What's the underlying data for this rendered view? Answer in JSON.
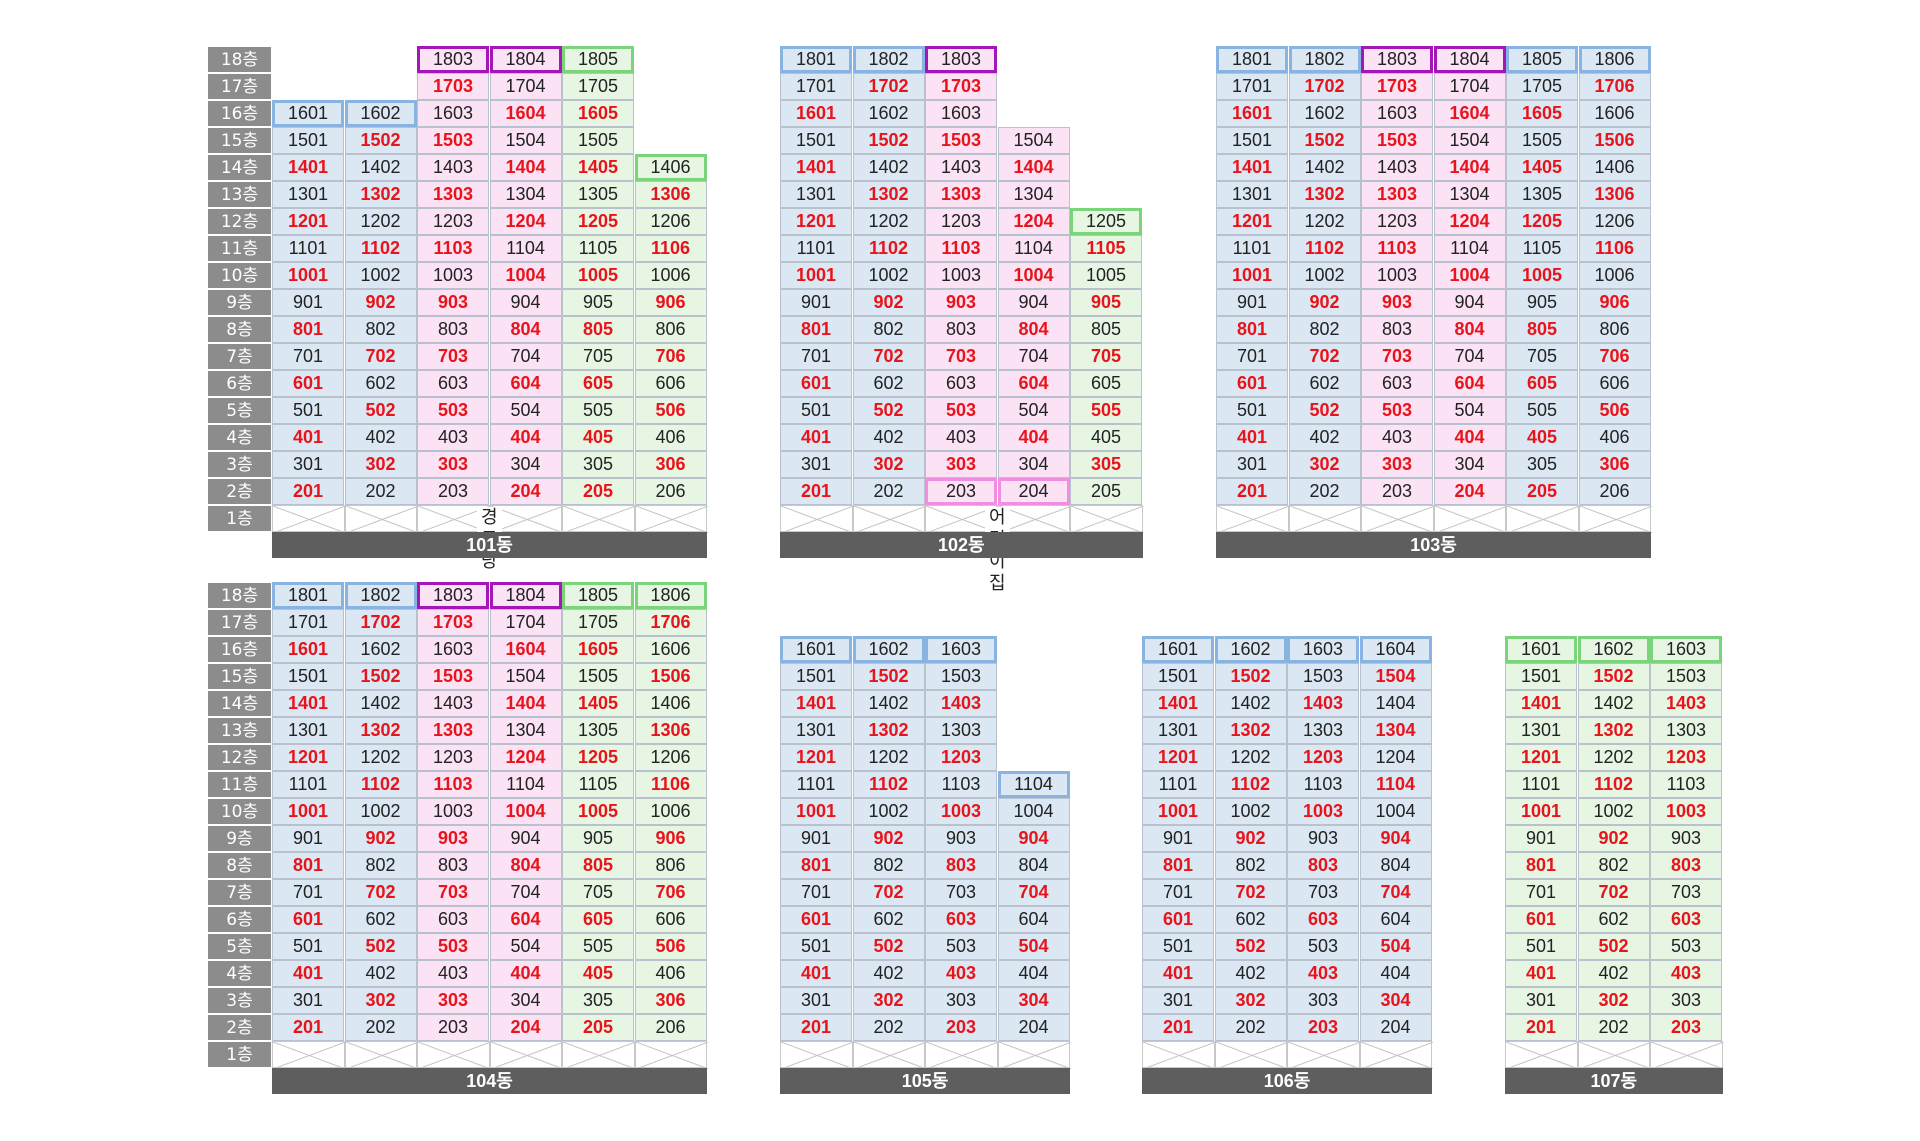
{
  "floor_suffix": "층",
  "buildings": [
    {
      "name": "101동",
      "ground_label": "경로당",
      "columns": [
        {
          "unit": "01",
          "color": "blue",
          "top": 16,
          "top_highlight": "blue"
        },
        {
          "unit": "02",
          "color": "blue",
          "top": 16,
          "top_highlight": "blue"
        },
        {
          "unit": "03",
          "color": "pink",
          "top": 18,
          "top_highlight": "purple"
        },
        {
          "unit": "04",
          "color": "pink",
          "top": 18,
          "top_highlight": "purple"
        },
        {
          "unit": "05",
          "color": "green",
          "top": 18,
          "top_highlight": "green"
        },
        {
          "unit": "06",
          "color": "green",
          "top": 14,
          "top_highlight": "green"
        }
      ],
      "red": [
        "201",
        "204",
        "205",
        "302",
        "303",
        "306",
        "401",
        "404",
        "405",
        "502",
        "503",
        "506",
        "601",
        "604",
        "605",
        "702",
        "703",
        "706",
        "801",
        "804",
        "805",
        "902",
        "903",
        "906",
        "1001",
        "1004",
        "1005",
        "1102",
        "1103",
        "1106",
        "1201",
        "1204",
        "1205",
        "1302",
        "1303",
        "1306",
        "1401",
        "1404",
        "1405",
        "1502",
        "1503",
        "1604",
        "1605",
        "1703"
      ]
    },
    {
      "name": "102동",
      "ground_label": "어린이집",
      "columns": [
        {
          "unit": "01",
          "color": "blue",
          "top": 18,
          "top_highlight": "blue"
        },
        {
          "unit": "02",
          "color": "blue",
          "top": 18,
          "top_highlight": "blue"
        },
        {
          "unit": "03",
          "color": "pink",
          "top": 18,
          "top_highlight": "purple",
          "bottom": 2,
          "bottom_highlight": "pink"
        },
        {
          "unit": "04",
          "color": "pink",
          "top": 15,
          "bottom": 2,
          "bottom_highlight": "pink"
        },
        {
          "unit": "05",
          "color": "green",
          "top": 12,
          "top_highlight": "green"
        }
      ],
      "red": [
        "201",
        "302",
        "303",
        "305",
        "401",
        "404",
        "502",
        "503",
        "505",
        "601",
        "604",
        "702",
        "703",
        "705",
        "801",
        "804",
        "902",
        "903",
        "905",
        "1001",
        "1004",
        "1102",
        "1103",
        "1105",
        "1201",
        "1204",
        "1302",
        "1303",
        "1401",
        "1404",
        "1502",
        "1503",
        "1601",
        "1702",
        "1703"
      ]
    },
    {
      "name": "103동",
      "ground_label": "",
      "columns": [
        {
          "unit": "01",
          "color": "blue",
          "top": 18,
          "top_highlight": "blue"
        },
        {
          "unit": "02",
          "color": "blue",
          "top": 18,
          "top_highlight": "blue"
        },
        {
          "unit": "03",
          "color": "pink",
          "top": 18,
          "top_highlight": "purple"
        },
        {
          "unit": "04",
          "color": "pink",
          "top": 18,
          "top_highlight": "purple"
        },
        {
          "unit": "05",
          "color": "blue",
          "top": 18,
          "top_highlight": "blue"
        },
        {
          "unit": "06",
          "color": "blue",
          "top": 18,
          "top_highlight": "blue"
        }
      ],
      "red": [
        "201",
        "204",
        "205",
        "302",
        "303",
        "306",
        "401",
        "404",
        "405",
        "502",
        "503",
        "506",
        "601",
        "604",
        "605",
        "702",
        "703",
        "706",
        "801",
        "804",
        "805",
        "902",
        "903",
        "906",
        "1001",
        "1004",
        "1005",
        "1102",
        "1103",
        "1106",
        "1201",
        "1204",
        "1205",
        "1302",
        "1303",
        "1306",
        "1401",
        "1404",
        "1405",
        "1502",
        "1503",
        "1506",
        "1601",
        "1604",
        "1605",
        "1702",
        "1703",
        "1706"
      ]
    },
    {
      "name": "104동",
      "ground_label": "",
      "columns": [
        {
          "unit": "01",
          "color": "blue",
          "top": 18,
          "top_highlight": "blue"
        },
        {
          "unit": "02",
          "color": "blue",
          "top": 18,
          "top_highlight": "blue"
        },
        {
          "unit": "03",
          "color": "pink",
          "top": 18,
          "top_highlight": "purple"
        },
        {
          "unit": "04",
          "color": "pink",
          "top": 18,
          "top_highlight": "purple"
        },
        {
          "unit": "05",
          "color": "green",
          "top": 18,
          "top_highlight": "green"
        },
        {
          "unit": "06",
          "color": "green",
          "top": 18,
          "top_highlight": "green"
        }
      ],
      "red": [
        "201",
        "204",
        "205",
        "302",
        "303",
        "306",
        "401",
        "404",
        "405",
        "502",
        "503",
        "506",
        "601",
        "604",
        "605",
        "702",
        "703",
        "706",
        "801",
        "804",
        "805",
        "902",
        "903",
        "906",
        "1001",
        "1004",
        "1005",
        "1102",
        "1103",
        "1106",
        "1201",
        "1204",
        "1205",
        "1302",
        "1303",
        "1306",
        "1401",
        "1404",
        "1405",
        "1502",
        "1503",
        "1506",
        "1601",
        "1604",
        "1605",
        "1702",
        "1703",
        "1706"
      ]
    },
    {
      "name": "105동",
      "ground_label": "",
      "columns": [
        {
          "unit": "01",
          "color": "blue",
          "top": 16,
          "top_highlight": "blue"
        },
        {
          "unit": "02",
          "color": "blue",
          "top": 16,
          "top_highlight": "blue"
        },
        {
          "unit": "03",
          "color": "blue",
          "top": 16,
          "top_highlight": "blue"
        },
        {
          "unit": "04",
          "color": "blue",
          "top": 11,
          "top_highlight": "blue"
        }
      ],
      "red": [
        "201",
        "203",
        "302",
        "304",
        "401",
        "403",
        "502",
        "504",
        "601",
        "603",
        "702",
        "704",
        "801",
        "803",
        "902",
        "904",
        "1001",
        "1003",
        "1102",
        "1201",
        "1203",
        "1302",
        "1401",
        "1403",
        "1502"
      ]
    },
    {
      "name": "106동",
      "ground_label": "",
      "columns": [
        {
          "unit": "01",
          "color": "blue",
          "top": 16,
          "top_highlight": "blue"
        },
        {
          "unit": "02",
          "color": "blue",
          "top": 16,
          "top_highlight": "blue"
        },
        {
          "unit": "03",
          "color": "blue",
          "top": 16,
          "top_highlight": "blue"
        },
        {
          "unit": "04",
          "color": "blue",
          "top": 16,
          "top_highlight": "blue"
        }
      ],
      "red": [
        "201",
        "203",
        "302",
        "304",
        "401",
        "403",
        "502",
        "504",
        "601",
        "603",
        "702",
        "704",
        "801",
        "803",
        "902",
        "904",
        "1001",
        "1003",
        "1102",
        "1104",
        "1201",
        "1203",
        "1302",
        "1304",
        "1401",
        "1403",
        "1502",
        "1504"
      ]
    },
    {
      "name": "107동",
      "ground_label": "",
      "columns": [
        {
          "unit": "01",
          "color": "green",
          "top": 16,
          "top_highlight": "green"
        },
        {
          "unit": "02",
          "color": "green",
          "top": 16,
          "top_highlight": "green"
        },
        {
          "unit": "03",
          "color": "green",
          "top": 16,
          "top_highlight": "green"
        }
      ],
      "red": [
        "201",
        "203",
        "302",
        "401",
        "403",
        "502",
        "601",
        "603",
        "702",
        "801",
        "803",
        "902",
        "1001",
        "1003",
        "1102",
        "1201",
        "1203",
        "1302",
        "1401",
        "1403",
        "1502"
      ]
    }
  ]
}
